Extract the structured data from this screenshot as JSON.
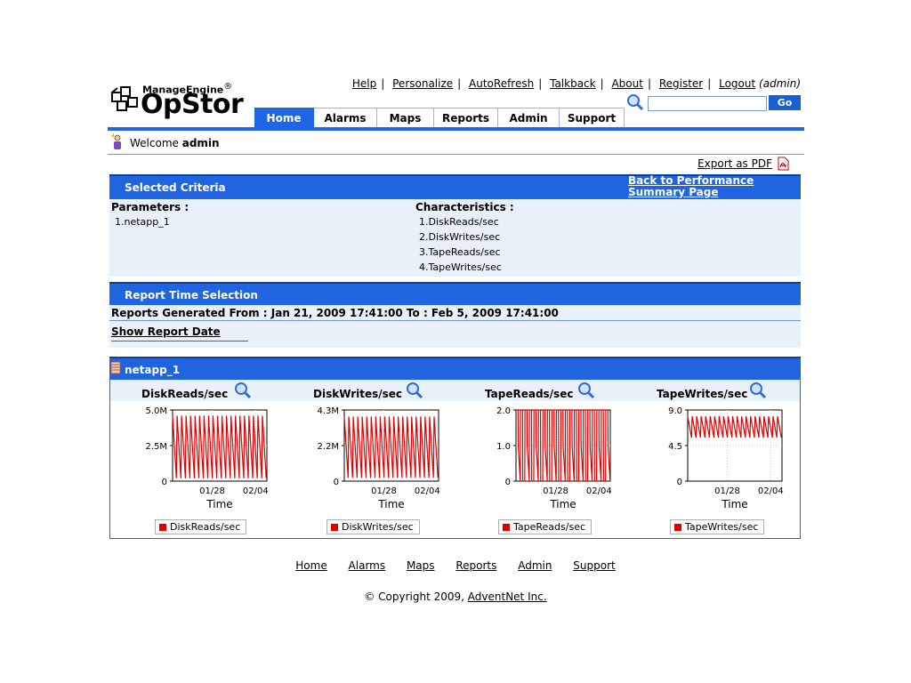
{
  "header": {
    "logo_brand": "ManageEngine",
    "logo_reg": "®",
    "logo_product": "OpStor",
    "top_links": [
      "Help",
      "Personalize",
      "AutoRefresh",
      "Talkback",
      "About",
      "Register",
      "Logout"
    ],
    "logout_user": "(admin)",
    "search": {
      "value": "",
      "go_label": "Go"
    }
  },
  "tabs": [
    {
      "label": "Home",
      "active": true
    },
    {
      "label": "Alarms",
      "active": false
    },
    {
      "label": "Maps",
      "active": false
    },
    {
      "label": "Reports",
      "active": false
    },
    {
      "label": "Admin",
      "active": false
    },
    {
      "label": "Support",
      "active": false
    }
  ],
  "welcome": {
    "prefix": "Welcome",
    "user": "admin"
  },
  "export_label": "Export as PDF",
  "criteria": {
    "title": "Selected Criteria",
    "back_link_line1": "Back to Performance",
    "back_link_line2": "Summary Page",
    "parameters_label": "Parameters :",
    "parameters": [
      "1.netapp_1"
    ],
    "characteristics_label": "Characteristics :",
    "characteristics": [
      "1.DiskReads/sec",
      "2.DiskWrites/sec",
      "3.TapeReads/sec",
      "4.TapeWrites/sec"
    ]
  },
  "report_time": {
    "title": "Report Time Selection",
    "generated": "Reports Generated From : Jan 21, 2009 17:41:00 To : Feb 5, 2009 17:41:00",
    "show_date": "Show Report Date"
  },
  "device": {
    "name": "netapp_1"
  },
  "colors": {
    "accent": "#2164e0",
    "series": "#e00000",
    "panel_bg": "#eaf0f9"
  },
  "chart_data": [
    {
      "type": "line",
      "title": "DiskReads/sec",
      "xlabel": "Time",
      "ylabel": "",
      "x_ticks": [
        "01/28",
        "02/04"
      ],
      "y_ticks": [
        "5.0M",
        "2.5M",
        "0"
      ],
      "ylim": [
        0,
        5.0
      ],
      "series": [
        {
          "name": "DiskReads/sec",
          "pattern": "sawtooth",
          "peak": 4.6,
          "trough": 0.2,
          "cycles": 21
        }
      ]
    },
    {
      "type": "line",
      "title": "DiskWrites/sec",
      "xlabel": "Time",
      "ylabel": "",
      "x_ticks": [
        "01/28",
        "02/04"
      ],
      "y_ticks": [
        "4.3M",
        "2.2M",
        "0"
      ],
      "ylim": [
        0,
        4.3
      ],
      "series": [
        {
          "name": "DiskWrites/sec",
          "pattern": "sawtooth",
          "peak": 3.9,
          "trough": 0.2,
          "cycles": 21
        }
      ]
    },
    {
      "type": "line",
      "title": "TapeReads/sec",
      "xlabel": "Time",
      "ylabel": "",
      "x_ticks": [
        "01/28",
        "02/04"
      ],
      "y_ticks": [
        "2.0",
        "1.0",
        "0"
      ],
      "ylim": [
        0,
        2.0
      ],
      "series": [
        {
          "name": "TapeReads/sec",
          "pattern": "square",
          "peak": 2.0,
          "trough": 0.0,
          "cycles": 21
        }
      ]
    },
    {
      "type": "line",
      "title": "TapeWrites/sec",
      "xlabel": "Time",
      "ylabel": "",
      "x_ticks": [
        "01/28",
        "02/04"
      ],
      "y_ticks": [
        "9.0",
        "4.5",
        "0"
      ],
      "ylim": [
        0,
        9.0
      ],
      "series": [
        {
          "name": "TapeWrites/sec",
          "pattern": "sawtooth",
          "peak": 8.2,
          "trough": 5.5,
          "cycles": 21
        }
      ]
    }
  ],
  "footer": {
    "links": [
      "Home",
      "Alarms",
      "Maps",
      "Reports",
      "Admin",
      "Support"
    ],
    "copyright_prefix": "© Copyright 2009, ",
    "copyright_link": "AdventNet Inc."
  }
}
